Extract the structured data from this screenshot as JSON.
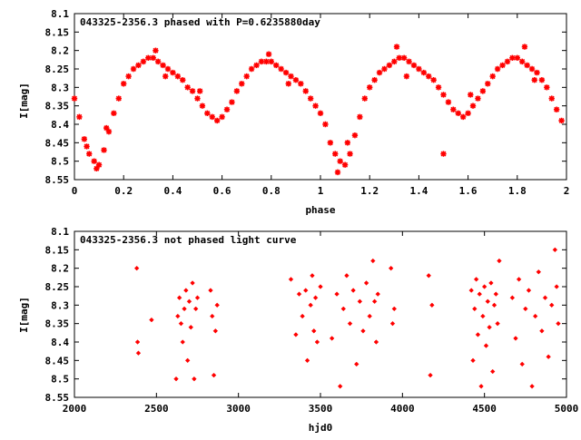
{
  "colors": {
    "points": "#ff0000",
    "axes": "#000000",
    "background": "#ffffff"
  },
  "chart_data": [
    {
      "type": "scatter",
      "title": "043325-2356.3 phased with P=0.6235880day",
      "xlabel": "phase",
      "ylabel": "I[mag]",
      "xlim": [
        0,
        2
      ],
      "ylim": [
        8.55,
        8.1
      ],
      "y_inverted": true,
      "grid": false,
      "xticks": [
        "0",
        "0.2",
        "0.4",
        "0.6",
        "0.8",
        "1",
        "1.2",
        "1.4",
        "1.6",
        "1.8",
        "2"
      ],
      "yticks": [
        "8.1",
        "8.15",
        "8.2",
        "8.25",
        "8.3",
        "8.35",
        "8.4",
        "8.45",
        "8.5",
        "8.55"
      ],
      "series": [
        {
          "marker": "star",
          "x": [
            0.0,
            0.02,
            0.04,
            0.06,
            0.08,
            0.1,
            0.12,
            0.14,
            0.16,
            0.18,
            0.2,
            0.22,
            0.24,
            0.26,
            0.28,
            0.3,
            0.32,
            0.34,
            0.36,
            0.38,
            0.4,
            0.42,
            0.44,
            0.46,
            0.48,
            0.5,
            0.52,
            0.54,
            0.56,
            0.58,
            0.6,
            0.62,
            0.64,
            0.66,
            0.68,
            0.7,
            0.72,
            0.74,
            0.76,
            0.78,
            0.8,
            0.82,
            0.84,
            0.86,
            0.88,
            0.9,
            0.92,
            0.94,
            0.96,
            0.98,
            1.0,
            1.02,
            1.04,
            1.06,
            1.08,
            1.1,
            1.12,
            1.14,
            1.16,
            1.18,
            1.2,
            1.22,
            1.24,
            1.26,
            1.28,
            1.3,
            1.32,
            1.34,
            1.36,
            1.38,
            1.4,
            1.42,
            1.44,
            1.46,
            1.48,
            1.5,
            1.52,
            1.54,
            1.56,
            1.58,
            1.6,
            1.62,
            1.64,
            1.66,
            1.68,
            1.7,
            1.72,
            1.74,
            1.76,
            1.78,
            1.8,
            1.82,
            1.84,
            1.86,
            1.88,
            1.9,
            1.92,
            1.94,
            1.96,
            1.98,
            0.05,
            0.09,
            0.13,
            0.33,
            0.37,
            0.51,
            0.79,
            0.87,
            1.07,
            1.11,
            1.31,
            1.35,
            1.61,
            1.83,
            1.87,
            1.5
          ],
          "y": [
            8.33,
            8.38,
            8.44,
            8.48,
            8.5,
            8.51,
            8.47,
            8.42,
            8.37,
            8.33,
            8.29,
            8.27,
            8.25,
            8.24,
            8.23,
            8.22,
            8.22,
            8.23,
            8.24,
            8.25,
            8.26,
            8.27,
            8.28,
            8.3,
            8.31,
            8.33,
            8.35,
            8.37,
            8.38,
            8.39,
            8.38,
            8.36,
            8.34,
            8.31,
            8.29,
            8.27,
            8.25,
            8.24,
            8.23,
            8.23,
            8.23,
            8.24,
            8.25,
            8.26,
            8.27,
            8.28,
            8.29,
            8.31,
            8.33,
            8.35,
            8.37,
            8.4,
            8.45,
            8.48,
            8.5,
            8.51,
            8.48,
            8.43,
            8.38,
            8.33,
            8.3,
            8.28,
            8.26,
            8.25,
            8.24,
            8.23,
            8.22,
            8.22,
            8.23,
            8.24,
            8.25,
            8.26,
            8.27,
            8.28,
            8.3,
            8.32,
            8.34,
            8.36,
            8.37,
            8.38,
            8.37,
            8.35,
            8.33,
            8.31,
            8.29,
            8.27,
            8.25,
            8.24,
            8.23,
            8.22,
            8.22,
            8.23,
            8.24,
            8.25,
            8.26,
            8.28,
            8.3,
            8.33,
            8.36,
            8.39,
            8.46,
            8.52,
            8.41,
            8.2,
            8.27,
            8.31,
            8.21,
            8.29,
            8.53,
            8.45,
            8.19,
            8.27,
            8.32,
            8.19,
            8.28,
            8.48
          ]
        }
      ]
    },
    {
      "type": "scatter",
      "title": "043325-2356.3 not phased light curve",
      "xlabel": "hjd0",
      "ylabel": "I[mag]",
      "xlim": [
        2000,
        5000
      ],
      "ylim": [
        8.55,
        8.1
      ],
      "y_inverted": true,
      "grid": false,
      "xticks": [
        "2000",
        "2500",
        "3000",
        "3500",
        "4000",
        "4500",
        "5000"
      ],
      "yticks": [
        "8.1",
        "8.15",
        "8.2",
        "8.25",
        "8.3",
        "8.35",
        "8.4",
        "8.45",
        "8.5",
        "8.55"
      ],
      "series": [
        {
          "marker": "diamond",
          "x": [
            2380,
            2385,
            2390,
            2470,
            2620,
            2630,
            2640,
            2650,
            2660,
            2670,
            2680,
            2690,
            2700,
            2710,
            2720,
            2730,
            2740,
            2750,
            2830,
            2840,
            2850,
            2860,
            2870,
            3320,
            3350,
            3370,
            3390,
            3410,
            3420,
            3440,
            3450,
            3460,
            3470,
            3480,
            3500,
            3570,
            3600,
            3620,
            3640,
            3660,
            3680,
            3700,
            3720,
            3740,
            3760,
            3780,
            3800,
            3820,
            3830,
            3840,
            3850,
            3930,
            3940,
            3950,
            4160,
            4170,
            4180,
            4420,
            4430,
            4440,
            4450,
            4460,
            4470,
            4480,
            4490,
            4500,
            4510,
            4520,
            4530,
            4540,
            4550,
            4560,
            4570,
            4580,
            4590,
            4670,
            4690,
            4710,
            4730,
            4750,
            4770,
            4790,
            4810,
            4830,
            4850,
            4870,
            4890,
            4910,
            4930,
            4940,
            4950
          ],
          "y": [
            8.2,
            8.4,
            8.43,
            8.34,
            8.5,
            8.33,
            8.28,
            8.35,
            8.4,
            8.31,
            8.26,
            8.45,
            8.29,
            8.36,
            8.24,
            8.5,
            8.31,
            8.28,
            8.26,
            8.33,
            8.49,
            8.37,
            8.3,
            8.23,
            8.38,
            8.27,
            8.33,
            8.26,
            8.45,
            8.3,
            8.22,
            8.37,
            8.28,
            8.4,
            8.25,
            8.39,
            8.27,
            8.52,
            8.31,
            8.22,
            8.35,
            8.26,
            8.46,
            8.29,
            8.37,
            8.24,
            8.33,
            8.18,
            8.29,
            8.4,
            8.27,
            8.2,
            8.35,
            8.31,
            8.22,
            8.49,
            8.3,
            8.26,
            8.45,
            8.31,
            8.23,
            8.38,
            8.27,
            8.52,
            8.33,
            8.25,
            8.41,
            8.29,
            8.36,
            8.24,
            8.48,
            8.3,
            8.27,
            8.35,
            8.18,
            8.28,
            8.39,
            8.23,
            8.46,
            8.31,
            8.26,
            8.52,
            8.33,
            8.21,
            8.37,
            8.28,
            8.44,
            8.3,
            8.15,
            8.25,
            8.35
          ]
        }
      ]
    }
  ]
}
